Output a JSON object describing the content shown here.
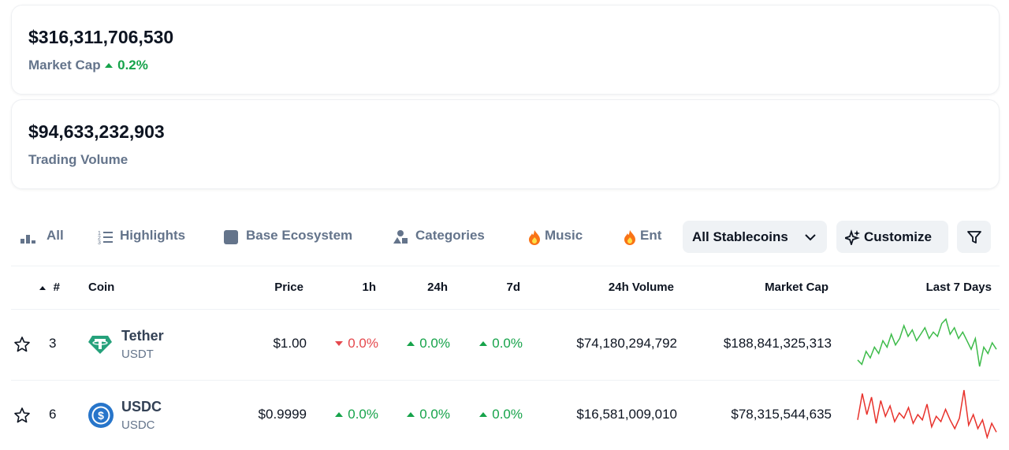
{
  "stats": [
    {
      "value": "$316,311,706,530",
      "label": "Market Cap",
      "change": "0.2%",
      "direction": "up"
    },
    {
      "value": "$94,633,232,903",
      "label": "Trading Volume"
    }
  ],
  "tabs": [
    "All",
    "Highlights",
    "Base Ecosystem",
    "Categories",
    "Music",
    "Ent"
  ],
  "buttons": [
    "All Stablecoins",
    "Customize"
  ],
  "table": {
    "headers": [
      "#",
      "Coin",
      "Price",
      "1h",
      "24h",
      "7d",
      "24h Volume",
      "Market Cap",
      "Last 7 Days"
    ],
    "rows": [
      {
        "rank": 3,
        "name": "Tether",
        "symbol": "USDT",
        "price": "$1.00",
        "h1": {
          "value": "0.0%",
          "direction": "down"
        },
        "h24": {
          "value": "0.0%",
          "direction": "up"
        },
        "d7": {
          "value": "0.0%",
          "direction": "up"
        },
        "volume": "$74,180,294,792",
        "market_cap": "$188,841,325,313",
        "sparkline_color": "#3dbb4a",
        "sparkline": [
          0.9992,
          0.999,
          0.9996,
          0.9993,
          0.9998,
          0.9995,
          1.0001,
          0.9998,
          1.0004,
          0.9999,
          1.0002,
          1.0008,
          1.0003,
          1.0006,
          1.0001,
          1.0004,
          1.0007,
          1.0002,
          1.0005,
          1.0003,
          1.0009,
          1.0011,
          1.0004,
          1.0007,
          1.0002,
          1.0005,
          1.0001,
          0.9997,
          1.0002,
          0.9989,
          0.9998,
          0.9995,
          1.0,
          0.9997
        ]
      },
      {
        "rank": 6,
        "name": "USDC",
        "symbol": "USDC",
        "price": "$0.9999",
        "h1": {
          "value": "0.0%",
          "direction": "up"
        },
        "h24": {
          "value": "0.0%",
          "direction": "up"
        },
        "d7": {
          "value": "0.0%",
          "direction": "up"
        },
        "volume": "$16,581,009,010",
        "market_cap": "$78,315,544,635",
        "sparkline_color": "#e8322c",
        "sparkline": [
          0.99995,
          1.0001,
          0.99998,
          1.00008,
          0.99993,
          1.00006,
          0.99997,
          1.00003,
          0.99994,
          0.99999,
          0.99996,
          1.00002,
          0.99993,
          0.99998,
          0.99995,
          1.00004,
          0.99991,
          0.99997,
          0.99994,
          1.00001,
          0.99995,
          0.9999,
          0.99996,
          1.00012,
          0.99992,
          0.99998,
          0.9999,
          0.99995,
          0.99985,
          0.99993,
          0.99988
        ]
      }
    ]
  }
}
